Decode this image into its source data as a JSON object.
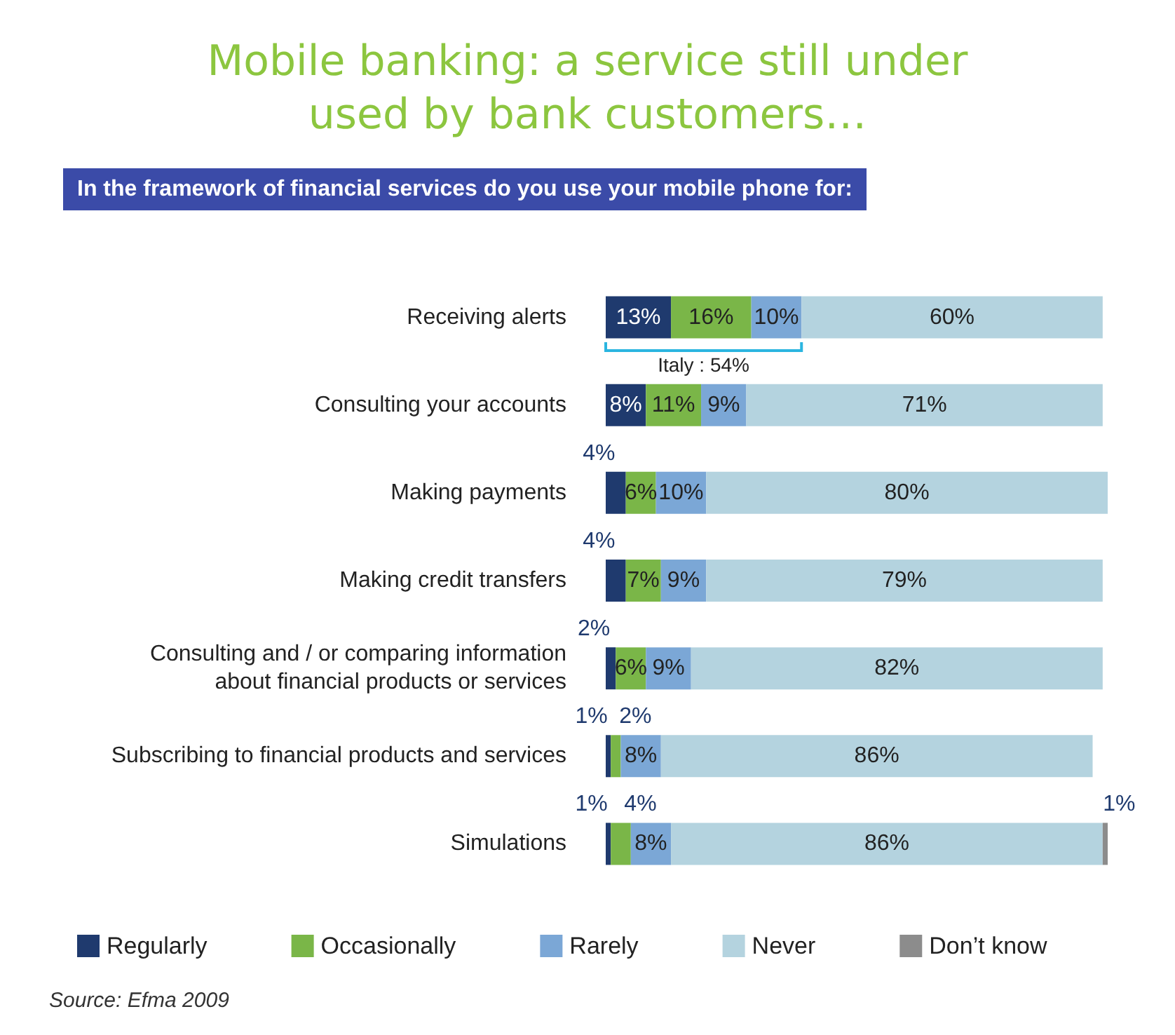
{
  "chart_data": {
    "type": "bar",
    "orientation": "horizontal",
    "stacked": true,
    "title": "Mobile banking: a service still under\nused by bank customers…",
    "subtitle": "In the framework of financial services do you use your mobile phone for:",
    "categories": [
      "Receiving alerts",
      "Consulting your accounts",
      "Making payments",
      "Making credit transfers",
      "Consulting and / or comparing information\nabout financial products or services",
      "Subscribing to financial products and services",
      "Simulations"
    ],
    "series": [
      {
        "name": "Regularly",
        "color": "#1f3a6e",
        "values": [
          13,
          8,
          4,
          4,
          2,
          1,
          1
        ],
        "value_labels": [
          "13%",
          "8%",
          "4%",
          "4%",
          "2%",
          "1%",
          "1%"
        ]
      },
      {
        "name": "Occasionally",
        "color": "#7ab648",
        "values": [
          16,
          11,
          6,
          7,
          6,
          2,
          4
        ],
        "value_labels": [
          "16%",
          "11%",
          "6%",
          "7%",
          "6%",
          "2%",
          "4%"
        ]
      },
      {
        "name": "Rarely",
        "color": "#7ba7d6",
        "values": [
          10,
          9,
          10,
          9,
          9,
          8,
          8
        ],
        "value_labels": [
          "10%",
          "9%",
          "10%",
          "9%",
          "9%",
          "8%",
          "8%"
        ]
      },
      {
        "name": "Never",
        "color": "#b4d3df",
        "values": [
          60,
          71,
          80,
          79,
          82,
          86,
          86
        ],
        "value_labels": [
          "60%",
          "71%",
          "80%",
          "79%",
          "82%",
          "86%",
          "86%"
        ]
      },
      {
        "name": "Don’t know",
        "color": "#8c8c8c",
        "values": [
          null,
          null,
          null,
          null,
          null,
          null,
          1
        ],
        "value_labels": [
          null,
          null,
          null,
          null,
          null,
          null,
          "1%"
        ]
      }
    ],
    "annotations": [
      "Italy : 54%",
      "Source: Efma 2009"
    ],
    "legend": "bottom"
  }
}
